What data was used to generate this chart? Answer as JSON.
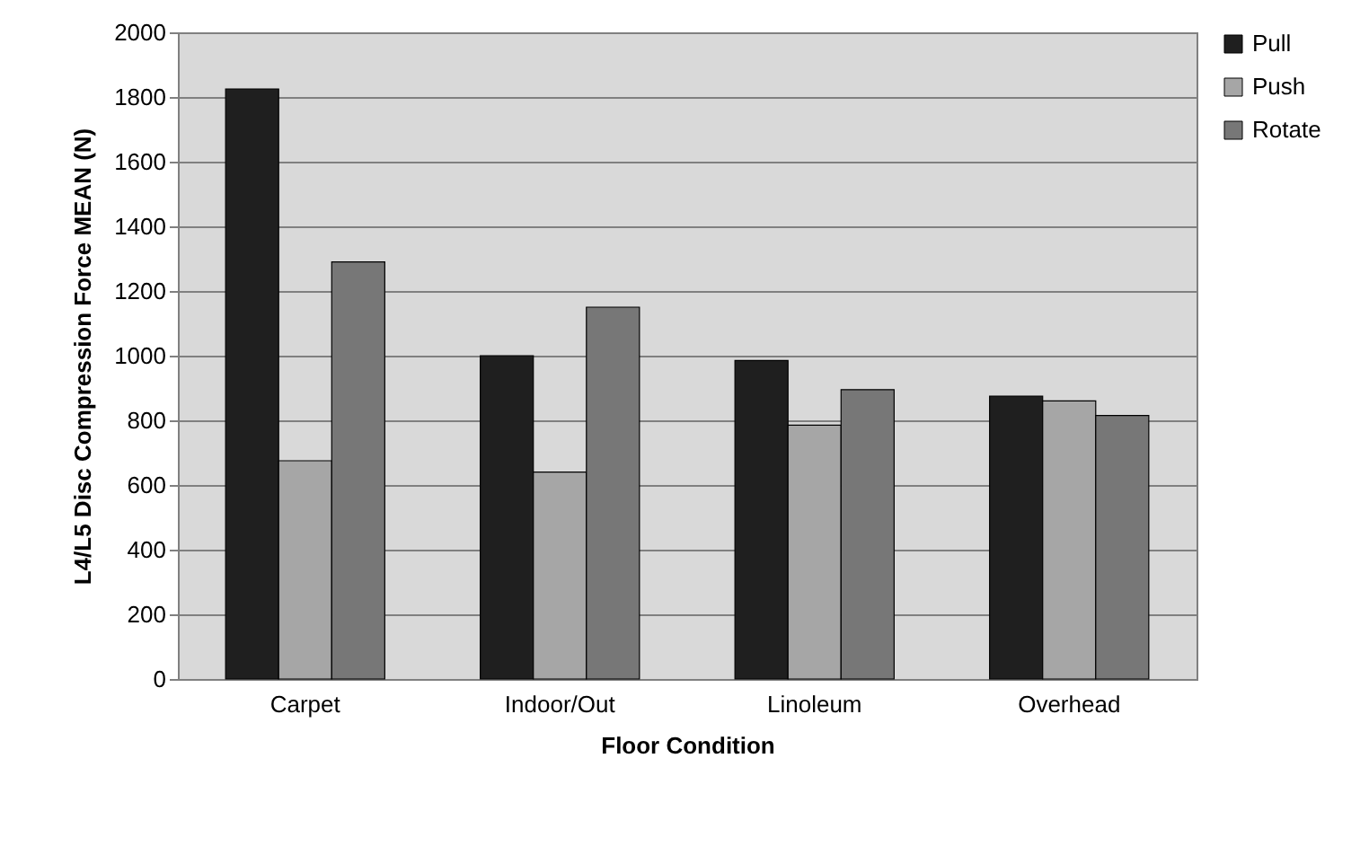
{
  "chart_data": {
    "type": "bar",
    "xlabel": "Floor Condition",
    "ylabel": "L4/L5 Disc Compression Force MEAN (N)",
    "categories": [
      "Carpet",
      "Indoor/Out",
      "Linoleum",
      "Overhead"
    ],
    "series": [
      {
        "name": "Pull",
        "color": "#1f1f1f",
        "values": [
          1825,
          1000,
          985,
          875
        ]
      },
      {
        "name": "Push",
        "color": "#a6a6a6",
        "values": [
          675,
          640,
          785,
          860
        ]
      },
      {
        "name": "Rotate",
        "color": "#777777",
        "values": [
          1290,
          1150,
          895,
          815
        ]
      }
    ],
    "ylim": [
      0,
      2000
    ],
    "yticks": [
      0,
      200,
      400,
      600,
      800,
      1000,
      1200,
      1400,
      1600,
      1800,
      2000
    ],
    "grid": "y",
    "legend": "right"
  }
}
